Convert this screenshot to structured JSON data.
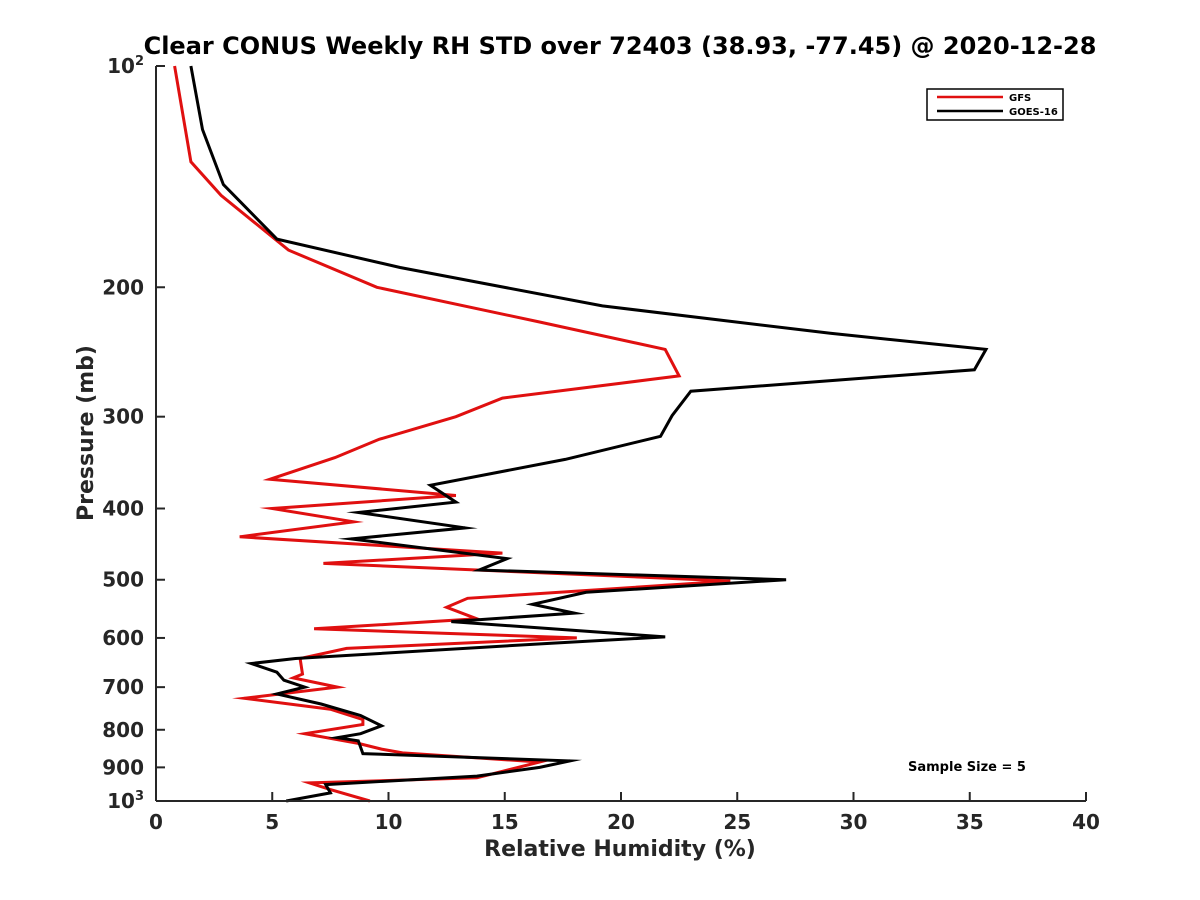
{
  "chart_data": {
    "type": "line",
    "title": "Clear CONUS Weekly RH STD over 72403 (38.93, -77.45) @ 2020-12-28",
    "xlabel": "Relative Humidity (%)",
    "ylabel": "Pressure (mb)",
    "xlim": [
      0,
      40
    ],
    "ylim": [
      100,
      1000
    ],
    "y_scale": "log",
    "y_reversed": true,
    "x_ticks": [
      0,
      5,
      10,
      15,
      20,
      25,
      30,
      35,
      40
    ],
    "x_tick_labels": [
      "0",
      "5",
      "10",
      "15",
      "20",
      "25",
      "30",
      "35",
      "40"
    ],
    "y_ticks": [
      {
        "value": 100,
        "base": "10",
        "exp": "2"
      },
      {
        "value": 200,
        "label": "200"
      },
      {
        "value": 300,
        "label": "300"
      },
      {
        "value": 400,
        "label": "400"
      },
      {
        "value": 500,
        "label": "500"
      },
      {
        "value": 600,
        "label": "600"
      },
      {
        "value": 700,
        "label": "700"
      },
      {
        "value": 800,
        "label": "800"
      },
      {
        "value": 900,
        "label": "900"
      },
      {
        "value": 1000,
        "base": "10",
        "exp": "3"
      }
    ],
    "grid": false,
    "legend_position": "top-right",
    "annotation": "Sample Size = 5",
    "series": [
      {
        "name": "GFS",
        "color": "#e01010",
        "points": [
          [
            0.8,
            100
          ],
          [
            1.5,
            135
          ],
          [
            2.8,
            150
          ],
          [
            5.7,
            178
          ],
          [
            9.5,
            200
          ],
          [
            16.5,
            223
          ],
          [
            21.9,
            243
          ],
          [
            22.5,
            264
          ],
          [
            14.9,
            283
          ],
          [
            12.9,
            300
          ],
          [
            9.6,
            322
          ],
          [
            7.7,
            341
          ],
          [
            4.9,
            365
          ],
          [
            12.9,
            384
          ],
          [
            5.0,
            400
          ],
          [
            8.5,
            417
          ],
          [
            3.6,
            437
          ],
          [
            14.9,
            460
          ],
          [
            7.2,
            475
          ],
          [
            24.7,
            502
          ],
          [
            13.4,
            530
          ],
          [
            12.5,
            545
          ],
          [
            13.8,
            565
          ],
          [
            6.8,
            583
          ],
          [
            18.1,
            600
          ],
          [
            8.2,
            620
          ],
          [
            6.2,
            640
          ],
          [
            6.3,
            672
          ],
          [
            5.9,
            680
          ],
          [
            7.8,
            700
          ],
          [
            3.8,
            725
          ],
          [
            7.5,
            750
          ],
          [
            8.9,
            775
          ],
          [
            8.9,
            787
          ],
          [
            6.4,
            810
          ],
          [
            8.7,
            835
          ],
          [
            9.7,
            850
          ],
          [
            10.6,
            860
          ],
          [
            16.5,
            885
          ],
          [
            13.8,
            930
          ],
          [
            6.6,
            945
          ],
          [
            7.5,
            965
          ],
          [
            9.2,
            1000
          ]
        ]
      },
      {
        "name": "GOES-16",
        "color": "#000000",
        "points": [
          [
            1.5,
            100
          ],
          [
            2.0,
            122
          ],
          [
            2.9,
            145
          ],
          [
            5.2,
            172
          ],
          [
            10.5,
            188
          ],
          [
            19.2,
            212
          ],
          [
            29.0,
            231
          ],
          [
            35.7,
            243
          ],
          [
            35.2,
            259
          ],
          [
            23.0,
            277
          ],
          [
            22.2,
            299
          ],
          [
            21.7,
            319
          ],
          [
            17.6,
            343
          ],
          [
            11.8,
            372
          ],
          [
            12.9,
            392
          ],
          [
            8.7,
            405
          ],
          [
            13.3,
            425
          ],
          [
            8.4,
            440
          ],
          [
            15.1,
            468
          ],
          [
            13.9,
            485
          ],
          [
            27.1,
            500
          ],
          [
            18.5,
            520
          ],
          [
            16.2,
            540
          ],
          [
            18.0,
            555
          ],
          [
            12.7,
            570
          ],
          [
            21.9,
            598
          ],
          [
            17.0,
            610
          ],
          [
            6.0,
            640
          ],
          [
            4.1,
            650
          ],
          [
            5.2,
            668
          ],
          [
            5.5,
            685
          ],
          [
            6.4,
            700
          ],
          [
            5.2,
            715
          ],
          [
            7.1,
            738
          ],
          [
            8.8,
            765
          ],
          [
            9.7,
            790
          ],
          [
            8.8,
            810
          ],
          [
            7.8,
            820
          ],
          [
            8.7,
            828
          ],
          [
            8.9,
            862
          ],
          [
            17.8,
            882
          ],
          [
            16.5,
            900
          ],
          [
            13.8,
            925
          ],
          [
            7.3,
            950
          ],
          [
            7.5,
            975
          ],
          [
            5.6,
            1000
          ]
        ]
      }
    ]
  }
}
